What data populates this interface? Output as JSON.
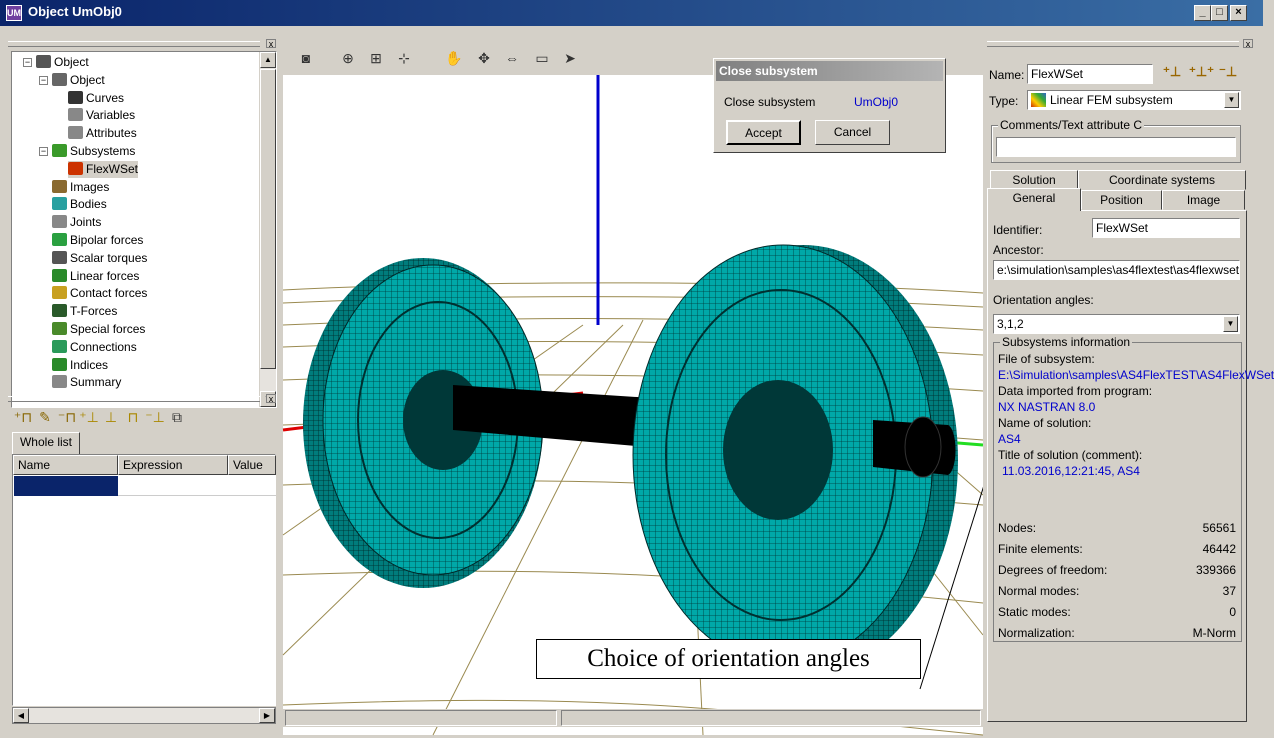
{
  "window": {
    "title": "Object UmObj0",
    "app_icon": "UM",
    "controls": [
      "_",
      "□",
      "×"
    ]
  },
  "tree": {
    "items": [
      {
        "label": "Object",
        "icon": "object-icon",
        "color": "#555"
      },
      {
        "label": "Object",
        "icon": "hammer-icon",
        "color": "#666"
      },
      {
        "label": "Curves",
        "icon": "curve-icon",
        "color": "#333"
      },
      {
        "label": "Variables",
        "icon": "variable-icon",
        "color": "#888"
      },
      {
        "label": "Attributes",
        "icon": "abc-icon",
        "color": "#888"
      },
      {
        "label": "Subsystems",
        "icon": "subsystems-icon",
        "color": "#3a9a2a"
      },
      {
        "label": "FlexWSet",
        "icon": "fem-icon",
        "color": "#cc3300"
      },
      {
        "label": "Images",
        "icon": "images-icon",
        "color": "#8a6a30"
      },
      {
        "label": "Bodies",
        "icon": "bodies-icon",
        "color": "#28a0a0"
      },
      {
        "label": "Joints",
        "icon": "joints-icon",
        "color": "#888"
      },
      {
        "label": "Bipolar forces",
        "icon": "bipolar-force-icon",
        "color": "#2aa040"
      },
      {
        "label": "Scalar torques",
        "icon": "torque-icon",
        "color": "#555"
      },
      {
        "label": "Linear forces",
        "icon": "linear-force-icon",
        "color": "#2a8a2a"
      },
      {
        "label": "Contact forces",
        "icon": "contact-force-icon",
        "color": "#c8a020"
      },
      {
        "label": "T-Forces",
        "icon": "t-force-icon",
        "color": "#2a5a2a"
      },
      {
        "label": "Special forces",
        "icon": "special-force-icon",
        "color": "#4a8a2a"
      },
      {
        "label": "Connections",
        "icon": "connections-icon",
        "color": "#2a9a5a"
      },
      {
        "label": "Indices",
        "icon": "indices-icon",
        "color": "#2a8a2a"
      },
      {
        "label": "Summary",
        "icon": "summary-icon",
        "color": "#888"
      }
    ]
  },
  "vars": {
    "tab": "Whole list",
    "columns": [
      "Name",
      "Expression",
      "Value"
    ]
  },
  "toolbar": {
    "icons": [
      "camera-icon",
      "zoom-in-icon",
      "zoom-window-icon",
      "zoom-fit-icon",
      "pan-hand-icon",
      "rotate-icon",
      "mirror-icon",
      "battery-icon",
      "pointer-icon"
    ]
  },
  "dialog": {
    "title": "Close subsystem",
    "label": "Close subsystem",
    "value": "UmObj0",
    "accept": "Accept",
    "cancel": "Cancel"
  },
  "annotation": "Choice of orientation angles",
  "props": {
    "name_label": "Name:",
    "name_value": "FlexWSet",
    "type_label": "Type:",
    "type_value": "Linear FEM subsystem",
    "comments_label": "Comments/Text attribute C",
    "tabs_row1": [
      "Solution",
      "Coordinate systems"
    ],
    "tabs_row2": [
      "General",
      "Position",
      "Image"
    ],
    "identifier_label": "Identifier:",
    "identifier_value": "FlexWSet",
    "ancestor_label": "Ancestor:",
    "ancestor_value": "e:\\simulation\\samples\\as4flextest\\as4flexwset",
    "orient_label": "Orientation angles:",
    "orient_value": "3,1,2",
    "info_title": "Subsystems information",
    "file_label": "File of subsystem:",
    "file_value": "E:\\Simulation\\samples\\AS4FlexTEST\\AS4FlexWSet",
    "imported_label": "Data imported from program:",
    "imported_value": "NX NASTRAN 8.0",
    "solution_label": "Name of solution:",
    "solution_value": "AS4",
    "title_label": "Title of solution (comment):",
    "title_value": "11.03.2016,12:21:45, AS4",
    "stats": [
      {
        "label": "Nodes:",
        "value": "56561"
      },
      {
        "label": "Finite elements:",
        "value": "46442"
      },
      {
        "label": "Degrees of freedom:",
        "value": "339366"
      },
      {
        "label": "Normal modes:",
        "value": "37"
      },
      {
        "label": "Static modes:",
        "value": "0"
      },
      {
        "label": "Normalization:",
        "value": "M-Norm"
      }
    ]
  }
}
